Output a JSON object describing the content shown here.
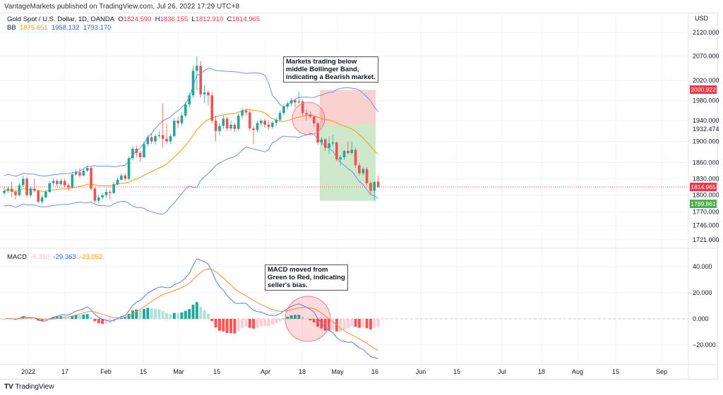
{
  "publisher": "VantageMarkets published on TradingView.com, Jul 26, 2022 17:29 UTC+8",
  "symbol": {
    "title": "Gold Spot / U.S. Dollar, 1D, OANDA",
    "o_label": "O",
    "o": "1824.590",
    "h_label": "H",
    "h": "1836.155",
    "l_label": "L",
    "l": "1812.910",
    "c_label": "C",
    "c": "1814.965"
  },
  "bb": {
    "label": "BB",
    "basis": "1875.651",
    "upper": "1958.132",
    "lower": "1793.170"
  },
  "macd": {
    "label": "MACD",
    "hist": "-6.310",
    "macd": "-29.363",
    "signal": "-23.052"
  },
  "annotations": {
    "price_note": "Markets trading below\nmiddle Bollinger Band,\nindicating a Bearish market.",
    "macd_note": "MACD moved from\nGreen to Red, indicating\nseller's bias."
  },
  "price_badges": {
    "target_top": "2000.922",
    "entry": "1932.474",
    "last": "1814.965",
    "stop": "1789.861"
  },
  "branding": "TradingView",
  "colors": {
    "up": "#26a69a",
    "down": "#ef5350",
    "bb_basis": "#ff9800",
    "bb_band": "#6f8ff5",
    "macd_line": "#5b7cf0",
    "signal_line": "#ff8a3d",
    "hist_up_strong": "#26a69a",
    "hist_up_weak": "#b2dfdb",
    "hist_down_strong": "#ff5252",
    "hist_down_weak": "#ffcdd2",
    "last_price": "#f23645",
    "target_zone": "#f8c9c7",
    "stop_zone": "#c6e5c1"
  },
  "chart_data": [
    {
      "type": "candlestick",
      "currency": "USD",
      "scale": "log",
      "y_ticks": [
        2120,
        2070,
        2020,
        1980,
        1940,
        1900,
        1860,
        1830,
        1800,
        1770,
        1746,
        1721
      ],
      "y_tick_labels": [
        "2120.000",
        "2070.000",
        "2020.000",
        "1980.000",
        "1940.000",
        "1900.000",
        "1860.000",
        "1830.000",
        "1800.000",
        "1770.000",
        "1746.000",
        "1721.000"
      ],
      "x_tick_labels": [
        "2022",
        "17",
        "Feb",
        "15",
        "Mar",
        "15",
        "Apr",
        "18",
        "May",
        "16",
        "Jun",
        "15",
        "Jul",
        "18",
        "Aug",
        "15",
        "Sep"
      ],
      "indicators": [
        "Bollinger Bands (20, 2)"
      ],
      "ohlc": [
        [
          1804,
          1816,
          1800,
          1808
        ],
        [
          1808,
          1816,
          1804,
          1812
        ],
        [
          1812,
          1825,
          1796,
          1806
        ],
        [
          1806,
          1810,
          1792,
          1800
        ],
        [
          1800,
          1822,
          1798,
          1818
        ],
        [
          1818,
          1836,
          1815,
          1830
        ],
        [
          1830,
          1834,
          1796,
          1800
        ],
        [
          1800,
          1816,
          1796,
          1812
        ],
        [
          1812,
          1830,
          1805,
          1808
        ],
        [
          1808,
          1810,
          1785,
          1788
        ],
        [
          1788,
          1800,
          1784,
          1796
        ],
        [
          1796,
          1810,
          1794,
          1806
        ],
        [
          1806,
          1825,
          1804,
          1822
        ],
        [
          1822,
          1830,
          1818,
          1826
        ],
        [
          1826,
          1830,
          1816,
          1820
        ],
        [
          1820,
          1830,
          1818,
          1826
        ],
        [
          1826,
          1830,
          1814,
          1818
        ],
        [
          1818,
          1822,
          1808,
          1814
        ],
        [
          1814,
          1842,
          1812,
          1838
        ],
        [
          1838,
          1848,
          1835,
          1842
        ],
        [
          1842,
          1850,
          1832,
          1836
        ],
        [
          1836,
          1848,
          1834,
          1845
        ],
        [
          1845,
          1854,
          1842,
          1850
        ],
        [
          1850,
          1852,
          1808,
          1812
        ],
        [
          1812,
          1815,
          1786,
          1790
        ],
        [
          1790,
          1800,
          1785,
          1796
        ],
        [
          1796,
          1804,
          1792,
          1800
        ],
        [
          1800,
          1812,
          1796,
          1806
        ],
        [
          1806,
          1810,
          1792,
          1804
        ],
        [
          1804,
          1824,
          1802,
          1820
        ],
        [
          1820,
          1832,
          1818,
          1828
        ],
        [
          1828,
          1840,
          1826,
          1836
        ],
        [
          1836,
          1840,
          1826,
          1830
        ],
        [
          1830,
          1872,
          1828,
          1868
        ],
        [
          1868,
          1890,
          1864,
          1886
        ],
        [
          1886,
          1892,
          1870,
          1878
        ],
        [
          1878,
          1882,
          1862,
          1870
        ],
        [
          1870,
          1900,
          1868,
          1895
        ],
        [
          1895,
          1912,
          1890,
          1908
        ],
        [
          1908,
          1915,
          1895,
          1900
        ],
        [
          1900,
          1914,
          1894,
          1910
        ],
        [
          1910,
          1920,
          1906,
          1912
        ],
        [
          1912,
          1974,
          1888,
          1905
        ],
        [
          1905,
          1935,
          1895,
          1900
        ],
        [
          1900,
          1915,
          1896,
          1910
        ],
        [
          1910,
          1945,
          1908,
          1940
        ],
        [
          1940,
          1948,
          1926,
          1935
        ],
        [
          1935,
          1956,
          1930,
          1950
        ],
        [
          1950,
          1978,
          1946,
          1972
        ],
        [
          1972,
          1995,
          1966,
          1990
        ],
        [
          1990,
          2050,
          1985,
          2040
        ],
        [
          2040,
          2070,
          2000,
          2050
        ],
        [
          2050,
          2060,
          1985,
          1992
        ],
        [
          1992,
          2010,
          1975,
          1996
        ],
        [
          1996,
          2000,
          1970,
          1990
        ],
        [
          1990,
          1996,
          1935,
          1940
        ],
        [
          1940,
          1950,
          1900,
          1920
        ],
        [
          1920,
          1935,
          1912,
          1930
        ],
        [
          1930,
          1950,
          1924,
          1944
        ],
        [
          1944,
          1948,
          1920,
          1925
        ],
        [
          1925,
          1940,
          1920,
          1932
        ],
        [
          1932,
          1936,
          1918,
          1924
        ],
        [
          1924,
          1955,
          1920,
          1950
        ],
        [
          1950,
          1966,
          1944,
          1960
        ],
        [
          1960,
          1964,
          1950,
          1956
        ],
        [
          1956,
          1960,
          1920,
          1925
        ],
        [
          1925,
          1930,
          1895,
          1922
        ],
        [
          1922,
          1940,
          1918,
          1935
        ],
        [
          1935,
          1944,
          1930,
          1940
        ],
        [
          1940,
          1944,
          1926,
          1932
        ],
        [
          1932,
          1940,
          1922,
          1928
        ],
        [
          1928,
          1940,
          1924,
          1936
        ],
        [
          1936,
          1946,
          1930,
          1942
        ],
        [
          1942,
          1960,
          1938,
          1955
        ],
        [
          1955,
          1972,
          1950,
          1968
        ],
        [
          1968,
          1978,
          1962,
          1974
        ],
        [
          1974,
          1985,
          1968,
          1980
        ],
        [
          1980,
          1984,
          1966,
          1976
        ],
        [
          1976,
          1998,
          1972,
          1978
        ],
        [
          1978,
          1982,
          1950,
          1955
        ],
        [
          1955,
          1962,
          1940,
          1952
        ],
        [
          1952,
          1958,
          1944,
          1948
        ],
        [
          1948,
          1950,
          1928,
          1935
        ],
        [
          1935,
          1938,
          1894,
          1898
        ],
        [
          1898,
          1908,
          1892,
          1904
        ],
        [
          1904,
          1906,
          1882,
          1888
        ],
        [
          1888,
          1910,
          1876,
          1896
        ],
        [
          1896,
          1912,
          1890,
          1898
        ],
        [
          1898,
          1900,
          1862,
          1866
        ],
        [
          1866,
          1874,
          1855,
          1870
        ],
        [
          1870,
          1884,
          1865,
          1882
        ],
        [
          1882,
          1900,
          1876,
          1878
        ],
        [
          1878,
          1900,
          1875,
          1884
        ],
        [
          1884,
          1888,
          1850,
          1855
        ],
        [
          1855,
          1860,
          1836,
          1840
        ],
        [
          1840,
          1852,
          1836,
          1848
        ],
        [
          1848,
          1852,
          1818,
          1822
        ],
        [
          1822,
          1826,
          1800,
          1808
        ],
        [
          1808,
          1826,
          1790,
          1824
        ],
        [
          1824.59,
          1836.155,
          1812.91,
          1814.965
        ]
      ],
      "position_tool": {
        "target": 2000.922,
        "entry": 1932.474,
        "stop": 1789.861
      },
      "last_price": 1814.965
    },
    {
      "type": "line+histogram",
      "title": "MACD",
      "y_ticks": [
        40,
        20,
        0,
        -20
      ],
      "y_tick_labels": [
        "40.000",
        "20.000",
        "0.000",
        "−20.000"
      ],
      "last_values": {
        "histogram": -6.31,
        "macd": -29.363,
        "signal": -23.052
      }
    }
  ]
}
